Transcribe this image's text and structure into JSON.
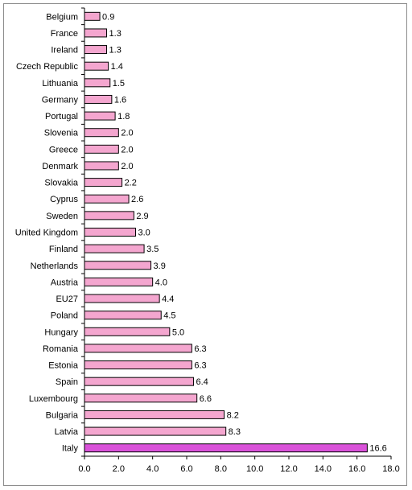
{
  "chart_data": {
    "type": "bar",
    "orientation": "horizontal",
    "title": "",
    "xlabel": "",
    "ylabel": "",
    "categories": [
      "Belgium",
      "France",
      "Ireland",
      "Czech Republic",
      "Lithuania",
      "Germany",
      "Portugal",
      "Slovenia",
      "Greece",
      "Denmark",
      "Slovakia",
      "Cyprus",
      "Sweden",
      "United Kingdom",
      "Finland",
      "Netherlands",
      "Austria",
      "EU27",
      "Poland",
      "Hungary",
      "Romania",
      "Estonia",
      "Spain",
      "Luxembourg",
      "Bulgaria",
      "Latvia",
      "Italy"
    ],
    "values": [
      0.9,
      1.3,
      1.3,
      1.4,
      1.5,
      1.6,
      1.8,
      2.0,
      2.0,
      2.0,
      2.2,
      2.6,
      2.9,
      3.0,
      3.5,
      3.9,
      4.0,
      4.4,
      4.5,
      5.0,
      6.3,
      6.3,
      6.4,
      6.6,
      8.2,
      8.3,
      16.6
    ],
    "value_labels": [
      "0.9",
      "1.3",
      "1.3",
      "1.4",
      "1.5",
      "1.6",
      "1.8",
      "2.0",
      "2.0",
      "2.0",
      "2.2",
      "2.6",
      "2.9",
      "3.0",
      "3.5",
      "3.9",
      "4.0",
      "4.4",
      "4.5",
      "5.0",
      "6.3",
      "6.3",
      "6.4",
      "6.6",
      "8.2",
      "8.3",
      "16.6"
    ],
    "xlim": [
      0,
      18
    ],
    "x_ticks": [
      "0.0",
      "2.0",
      "4.0",
      "6.0",
      "8.0",
      "10.0",
      "12.0",
      "14.0",
      "16.0",
      "18.0"
    ],
    "grid": false,
    "legend": "none",
    "colors": {
      "bar": "#f4a6cf",
      "highlight_bar": "#d952d9",
      "bar_edge": "#000000"
    },
    "highlight_category": "Italy"
  }
}
